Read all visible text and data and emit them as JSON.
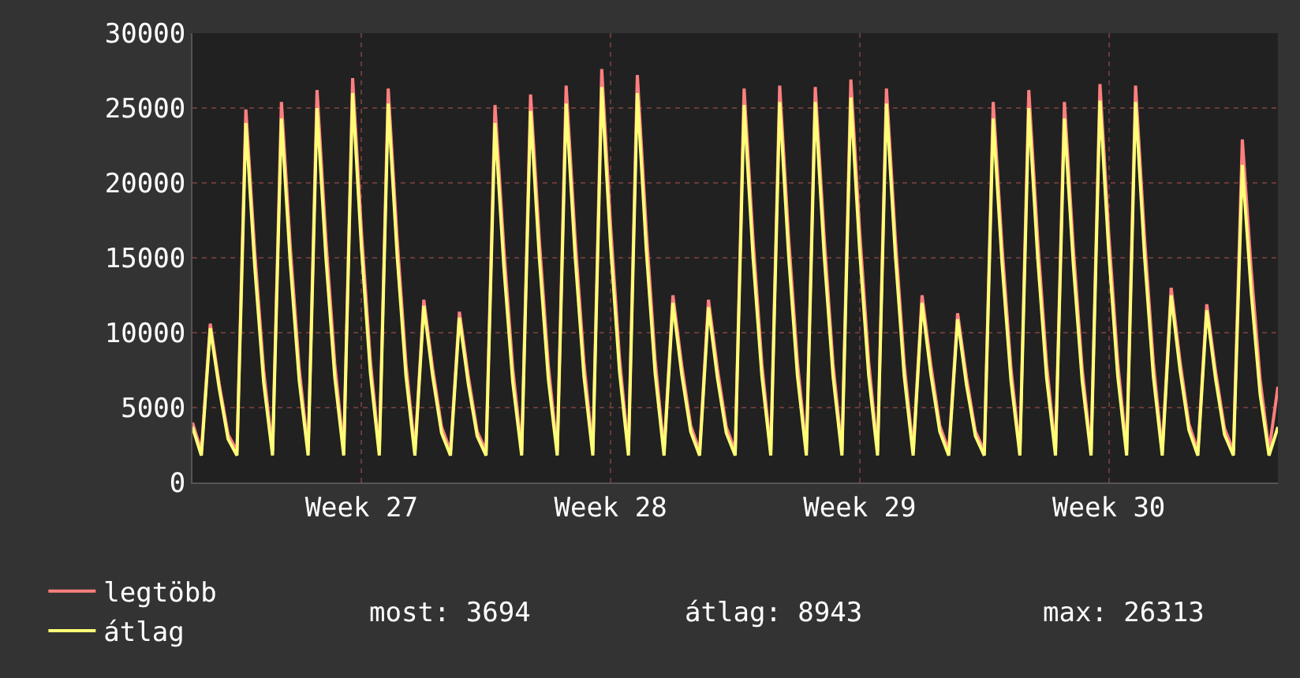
{
  "chart_data": {
    "type": "line",
    "categories": [
      null,
      null,
      null,
      null,
      null,
      null,
      null,
      null,
      null,
      null,
      null,
      null,
      null,
      null,
      null,
      null,
      null,
      null,
      null,
      "Week 27",
      null,
      null,
      null,
      null,
      null,
      null,
      null,
      null,
      null,
      null,
      null,
      null,
      null,
      null,
      null,
      null,
      null,
      null,
      null,
      null,
      null,
      null,
      null,
      null,
      null,
      null,
      null,
      "Week 28",
      null,
      null,
      null,
      null,
      null,
      null,
      null,
      null,
      null,
      null,
      null,
      null,
      null,
      null,
      null,
      null,
      null,
      null,
      null,
      null,
      null,
      null,
      null,
      null,
      null,
      null,
      null,
      "Week 29",
      null,
      null,
      null,
      null,
      null,
      null,
      null,
      null,
      null,
      null,
      null,
      null,
      null,
      null,
      null,
      null,
      null,
      null,
      null,
      null,
      null,
      null,
      null,
      null,
      null,
      null,
      null,
      "Week 30",
      null,
      null,
      null,
      null,
      null,
      null,
      null,
      null,
      null,
      null,
      null,
      null,
      null,
      null,
      null,
      null,
      null,
      null,
      null
    ],
    "series": [
      {
        "name": "legtöbb",
        "color": "#ff7f7f",
        "values": [
          4000,
          2100,
          10600,
          6600,
          3200,
          2100,
          24900,
          15400,
          7500,
          2100,
          25400,
          15700,
          7600,
          2100,
          26200,
          16200,
          7900,
          2100,
          27000,
          16700,
          8100,
          2100,
          26300,
          16300,
          7900,
          2100,
          12200,
          7600,
          3700,
          2100,
          11400,
          7100,
          3400,
          2100,
          25200,
          15600,
          7600,
          2100,
          25900,
          16100,
          7800,
          2100,
          26500,
          16400,
          8000,
          2100,
          27600,
          17100,
          8300,
          2100,
          27200,
          16900,
          8200,
          2100,
          12500,
          7800,
          3800,
          2100,
          12200,
          7600,
          3700,
          2100,
          26300,
          16300,
          7900,
          2100,
          26500,
          16400,
          8000,
          2100,
          26400,
          16400,
          7900,
          2100,
          26900,
          16700,
          8100,
          2100,
          26300,
          16300,
          7900,
          2100,
          12500,
          7800,
          3800,
          2100,
          11300,
          7000,
          3400,
          2100,
          25400,
          15700,
          7600,
          2100,
          26200,
          16200,
          7900,
          2100,
          25400,
          15700,
          7600,
          2100,
          26600,
          16500,
          8000,
          2100,
          26500,
          16400,
          8000,
          2100,
          13000,
          8100,
          3900,
          2100,
          11900,
          7400,
          3600,
          2100,
          22900,
          14200,
          6900,
          2100,
          6400
        ]
      },
      {
        "name": "átlag",
        "color": "#ffff77",
        "values": [
          3700,
          1800,
          10300,
          6300,
          2900,
          1800,
          24000,
          14400,
          6700,
          1800,
          24300,
          14600,
          6800,
          1800,
          25000,
          15000,
          7000,
          1800,
          26000,
          15600,
          7300,
          1800,
          25300,
          15200,
          7100,
          1800,
          11800,
          7100,
          3300,
          1800,
          11000,
          6600,
          3100,
          1800,
          24000,
          14400,
          6700,
          1800,
          24800,
          14900,
          6900,
          1800,
          25300,
          15200,
          7100,
          1800,
          26400,
          15800,
          7400,
          1800,
          26000,
          15600,
          7300,
          1800,
          12000,
          7200,
          3400,
          1800,
          11700,
          7000,
          3300,
          1800,
          25200,
          15100,
          7100,
          1800,
          25400,
          15200,
          7100,
          1800,
          25400,
          15200,
          7100,
          1800,
          25700,
          15400,
          7200,
          1800,
          25300,
          15200,
          7100,
          1800,
          12000,
          7200,
          3400,
          1800,
          10900,
          6500,
          3100,
          1800,
          24300,
          14600,
          6800,
          1800,
          25000,
          15000,
          7000,
          1800,
          24300,
          14600,
          6800,
          1800,
          25500,
          15300,
          7100,
          1800,
          25400,
          15200,
          7100,
          1800,
          12500,
          7500,
          3500,
          1800,
          11500,
          6900,
          3200,
          1800,
          21200,
          12700,
          5900,
          1800,
          3700
        ]
      }
    ],
    "ylim": [
      0,
      30000
    ],
    "yticks": [
      0,
      5000,
      10000,
      15000,
      20000,
      25000,
      30000
    ],
    "grid": true,
    "legend": "bottom left",
    "annotations": [
      "most: 3694",
      "átlag: 8943",
      "max: 26313"
    ]
  }
}
